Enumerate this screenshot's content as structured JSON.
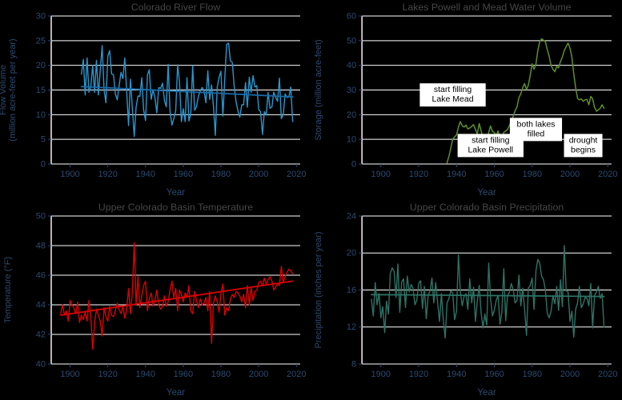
{
  "figure": {
    "description": "2x2 grid of Colorado River climate and water charts on black background"
  },
  "style": {
    "background": "#000000",
    "grid_color": "#ffffff",
    "left_spine_color": "#efd9ed",
    "tick_mark_color": "#2b4a70",
    "tick_label_color": "#2b4a70",
    "axis_label_color": "#2b4a70",
    "title_color": "#474747",
    "annotation_bg": "#ffffff",
    "annotation_text_color": "#000000"
  },
  "chart_data": [
    {
      "type": "line",
      "title": "Colorado River Flow",
      "xlabel": "Year",
      "ylabel": "Flow Volume\n(million acre-feet per year)",
      "xlim": [
        1890,
        2022
      ],
      "ylim": [
        0,
        30
      ],
      "xticks": [
        1900,
        1920,
        1940,
        1960,
        1980,
        2000,
        2020
      ],
      "yticks": [
        0,
        5,
        10,
        15,
        20,
        25,
        30
      ],
      "grid": "horizontal",
      "legend": "none",
      "color": "#2997cf",
      "series": [
        {
          "name": "annual flow",
          "x_start": 1906,
          "color": "#2997cf",
          "width": 1.4,
          "values": [
            18.2,
            21.2,
            14.0,
            21.5,
            14.5,
            15.8,
            20.0,
            14.5,
            21.0,
            14.0,
            19.2,
            24.0,
            15.0,
            12.4,
            21.9,
            23.0,
            18.3,
            18.1,
            14.2,
            13.0,
            15.9,
            18.6,
            17.3,
            21.5,
            14.9,
            7.8,
            17.2,
            11.4,
            5.6,
            11.5,
            13.8,
            13.7,
            17.5,
            11.0,
            8.8,
            18.1,
            19.1,
            13.1,
            15.1,
            13.4,
            10.4,
            15.5,
            15.3,
            16.4,
            12.9,
            11.6,
            20.2,
            10.7,
            7.9,
            9.2,
            10.8,
            20.1,
            16.6,
            8.6,
            11.2,
            8.6,
            17.5,
            8.7,
            10.1,
            19.9,
            10.9,
            11.6,
            13.7,
            14.8,
            15.5,
            14.9,
            12.4,
            18.9,
            13.1,
            16.0,
            11.8,
            5.8,
            15.5,
            17.6,
            18.8,
            9.7,
            17.3,
            24.2,
            24.5,
            20.9,
            20.6,
            15.8,
            12.6,
            10.7,
            9.5,
            12.0,
            12.0,
            16.5,
            11.5,
            17.6,
            14.5,
            17.9,
            15.6,
            15.9,
            11.0,
            10.6,
            6.0,
            10.6,
            9.9,
            14.5,
            11.3,
            11.6,
            14.6,
            13.5,
            12.7,
            17.4,
            9.2,
            10.0,
            14.2,
            13.5,
            13.6,
            15.6,
            8.6
          ]
        },
        {
          "name": "trend",
          "x": [
            1906,
            2018
          ],
          "values": [
            15.7,
            13.6
          ],
          "color": "#1a6ba6",
          "width": 1.8
        }
      ],
      "annotations": []
    },
    {
      "type": "line",
      "title": "Lakes Powell and Mead Water Volume",
      "xlabel": "Year",
      "ylabel": "Storage (million acre-feet)",
      "xlim": [
        1890,
        2022
      ],
      "ylim": [
        0,
        60
      ],
      "xticks": [
        1900,
        1920,
        1940,
        1960,
        1980,
        2000,
        2020
      ],
      "yticks": [
        0,
        10,
        20,
        30,
        40,
        50,
        60
      ],
      "grid": "horizontal",
      "legend": "none",
      "color": "#5d8f2a",
      "series": [
        {
          "name": "combined storage",
          "x_start": 1935,
          "color": "#5d8f2a",
          "width": 1.5,
          "values": [
            0.5,
            3.2,
            6.5,
            10.2,
            11.0,
            11.8,
            15.0,
            17.2,
            15.5,
            15.0,
            15.8,
            14.2,
            14.6,
            15.2,
            16.0,
            14.0,
            12.2,
            16.4,
            13.6,
            10.2,
            8.0,
            7.4,
            12.8,
            15.4,
            13.2,
            12.8,
            11.4,
            13.4,
            9.8,
            10.6,
            12.8,
            13.4,
            14.0,
            15.6,
            17.4,
            19.4,
            21.6,
            23.2,
            27.0,
            28.4,
            31.0,
            32.6,
            30.2,
            32.0,
            36.0,
            40.6,
            38.4,
            40.6,
            46.0,
            49.6,
            50.8,
            50.2,
            49.6,
            46.4,
            43.6,
            40.0,
            38.4,
            37.4,
            39.6,
            39.0,
            41.6,
            43.4,
            46.0,
            47.6,
            49.0,
            47.0,
            43.4,
            36.6,
            31.0,
            26.6,
            26.0,
            26.4,
            25.4,
            26.0,
            26.2,
            24.0,
            27.4,
            26.4,
            23.0,
            21.4,
            22.0,
            22.6,
            24.0,
            22.6
          ]
        }
      ],
      "annotations": [
        {
          "text": "start filling\nLake Mead",
          "x": 1938,
          "y": 28
        },
        {
          "text": "start filling\nLake Powell",
          "x": 1958,
          "y": 7.5
        },
        {
          "text": "both lakes\nfilled",
          "x": 1982,
          "y": 14
        },
        {
          "text": "drought\nbegins",
          "x": 2007,
          "y": 7.5
        }
      ]
    },
    {
      "type": "line",
      "title": "Upper Colorado Basin Temperature",
      "xlabel": "Year",
      "ylabel": "Temperature (°F)",
      "xlim": [
        1890,
        2022
      ],
      "ylim": [
        40,
        50
      ],
      "xticks": [
        1900,
        1920,
        1940,
        1960,
        1980,
        2000,
        2020
      ],
      "yticks": [
        40,
        42,
        44,
        46,
        48,
        50
      ],
      "grid": "horizontal",
      "legend": "none",
      "color": "#dd0000",
      "series": [
        {
          "name": "annual temperature",
          "x_start": 1895,
          "color": "#dd0000",
          "width": 1.4,
          "values": [
            43.4,
            44.0,
            43.3,
            43.6,
            42.9,
            44.3,
            44.0,
            43.8,
            43.4,
            44.2,
            42.8,
            43.3,
            43.0,
            43.5,
            42.9,
            44.3,
            43.1,
            41.0,
            42.8,
            43.7,
            43.3,
            42.9,
            41.9,
            43.8,
            43.2,
            42.9,
            43.9,
            43.3,
            43.2,
            43.6,
            44.1,
            43.7,
            43.4,
            43.9,
            43.1,
            43.7,
            45.1,
            43.4,
            44.8,
            48.2,
            44.0,
            45.9,
            43.8,
            44.6,
            45.3,
            45.6,
            43.6,
            44.4,
            44.8,
            43.9,
            44.3,
            45.0,
            44.0,
            43.7,
            43.9,
            44.6,
            43.9,
            44.2,
            45.0,
            45.6,
            44.5,
            45.1,
            43.6,
            45.0,
            44.7,
            44.2,
            44.8,
            44.5,
            45.3,
            43.6,
            43.4,
            44.9,
            44.3,
            43.8,
            44.4,
            44.0,
            44.1,
            44.5,
            43.6,
            44.9,
            41.4,
            44.1,
            44.6,
            44.2,
            43.5,
            44.8,
            45.4,
            43.3,
            43.8,
            43.6,
            44.4,
            44.7,
            44.5,
            44.9,
            44.8,
            44.6,
            44.2,
            44.7,
            43.8,
            45.3,
            44.0,
            45.2,
            44.3,
            44.9,
            45.0,
            45.5,
            45.6,
            45.3,
            45.8,
            45.4,
            45.7,
            45.9,
            45.6,
            45.0,
            45.2,
            45.4,
            45.3,
            46.6,
            45.5,
            45.9,
            46.2,
            46.4,
            46.3,
            46.1
          ]
        },
        {
          "name": "trend",
          "x": [
            1895,
            2018
          ],
          "values": [
            43.3,
            45.6
          ],
          "color": "#dd0000",
          "width": 1.8
        }
      ],
      "annotations": []
    },
    {
      "type": "line",
      "title": "Upper Colorado Basin Precipitation",
      "xlabel": "Year",
      "ylabel": "Precipitation (inches per year)",
      "xlim": [
        1890,
        2022
      ],
      "ylim": [
        8,
        24
      ],
      "xticks": [
        1900,
        1920,
        1940,
        1960,
        1980,
        2000,
        2020
      ],
      "yticks": [
        8,
        12,
        16,
        20,
        24
      ],
      "grid": "horizontal",
      "legend": "none",
      "color": "#2e7265",
      "series": [
        {
          "name": "annual precipitation",
          "x_start": 1895,
          "color": "#2e7265",
          "width": 1.4,
          "values": [
            15.0,
            13.2,
            16.8,
            14.4,
            15.6,
            13.0,
            14.2,
            11.4,
            14.8,
            13.4,
            17.8,
            18.4,
            18.0,
            15.2,
            18.8,
            13.6,
            16.9,
            17.2,
            14.1,
            17.5,
            15.8,
            16.6,
            16.2,
            14.4,
            14.9,
            16.7,
            17.0,
            14.0,
            16.4,
            12.9,
            15.4,
            15.9,
            17.3,
            14.6,
            16.8,
            14.7,
            12.6,
            15.6,
            12.8,
            10.8,
            14.6,
            15.1,
            15.9,
            15.7,
            12.8,
            13.7,
            19.8,
            15.9,
            14.3,
            15.3,
            15.6,
            13.9,
            17.2,
            14.6,
            16.3,
            12.6,
            14.8,
            16.5,
            13.6,
            11.9,
            13.4,
            12.2,
            18.9,
            15.1,
            13.2,
            13.8,
            14.9,
            15.4,
            12.3,
            13.6,
            18.3,
            12.7,
            15.4,
            15.8,
            16.7,
            16.0,
            14.6,
            14.9,
            17.6,
            14.3,
            16.2,
            14.0,
            11.1,
            16.2,
            16.5,
            17.3,
            13.9,
            18.1,
            19.3,
            18.9,
            17.5,
            17.1,
            16.0,
            13.5,
            13.0,
            13.7,
            15.4,
            14.5,
            16.4,
            13.8,
            17.1,
            14.2,
            20.8,
            15.9,
            15.8,
            12.6,
            13.7,
            10.9,
            13.9,
            14.6,
            16.4,
            14.1,
            14.5,
            15.2,
            15.1,
            14.3,
            16.7,
            11.9,
            15.4,
            15.8,
            16.4,
            15.1,
            15.6,
            12.0
          ]
        },
        {
          "name": "trend",
          "x": [
            1895,
            2018
          ],
          "values": [
            15.5,
            15.3
          ],
          "color": "#2e7265",
          "width": 1.8
        }
      ],
      "annotations": []
    }
  ]
}
